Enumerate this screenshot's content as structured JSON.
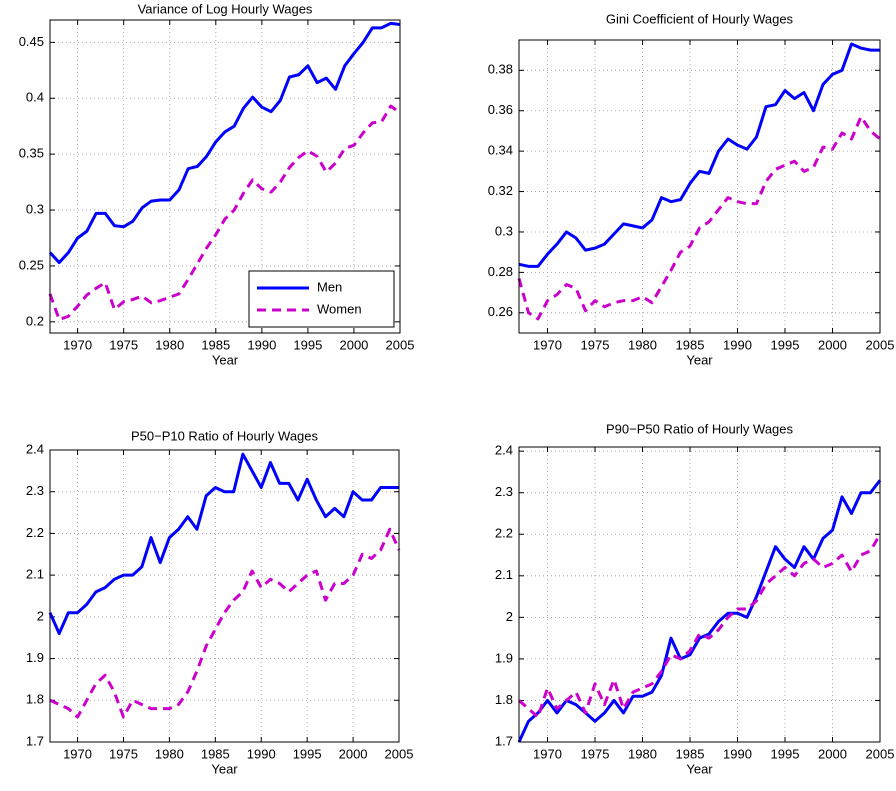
{
  "chart_data": [
    {
      "type": "line",
      "title": "Variance of Log Hourly Wages",
      "xlabel": "Year",
      "x": [
        1967,
        1968,
        1969,
        1970,
        1971,
        1972,
        1973,
        1974,
        1975,
        1976,
        1977,
        1978,
        1979,
        1980,
        1981,
        1982,
        1983,
        1984,
        1985,
        1986,
        1987,
        1988,
        1989,
        1990,
        1991,
        1992,
        1993,
        1994,
        1995,
        1996,
        1997,
        1998,
        1999,
        2000,
        2001,
        2002,
        2003,
        2004,
        2005
      ],
      "xlim": [
        1967,
        2005
      ],
      "xticks": [
        1970,
        1975,
        1980,
        1985,
        1990,
        1995,
        2000,
        2005
      ],
      "ylim": [
        0.19,
        0.47
      ],
      "yticks": [
        0.2,
        0.25,
        0.3,
        0.35,
        0.4,
        0.45
      ],
      "grid": true,
      "legend": "lower right",
      "series": [
        {
          "name": "Men",
          "color": "#0000ff",
          "dashed": false,
          "values": [
            0.262,
            0.253,
            0.262,
            0.275,
            0.281,
            0.297,
            0.297,
            0.286,
            0.285,
            0.29,
            0.302,
            0.308,
            0.309,
            0.309,
            0.318,
            0.337,
            0.339,
            0.348,
            0.361,
            0.37,
            0.375,
            0.391,
            0.401,
            0.392,
            0.388,
            0.398,
            0.419,
            0.421,
            0.429,
            0.414,
            0.418,
            0.408,
            0.429,
            0.44,
            0.45,
            0.463,
            0.463,
            0.467,
            0.466
          ]
        },
        {
          "name": "Women",
          "color": "#cc00cc",
          "dashed": true,
          "values": [
            0.225,
            0.202,
            0.205,
            0.214,
            0.224,
            0.23,
            0.235,
            0.211,
            0.218,
            0.22,
            0.223,
            0.217,
            0.219,
            0.222,
            0.225,
            0.238,
            0.252,
            0.266,
            0.278,
            0.292,
            0.3,
            0.315,
            0.327,
            0.319,
            0.316,
            0.325,
            0.338,
            0.347,
            0.353,
            0.348,
            0.334,
            0.342,
            0.355,
            0.358,
            0.369,
            0.378,
            0.379,
            0.393,
            0.387
          ]
        }
      ]
    },
    {
      "type": "line",
      "title": "Gini Coefficient of Hourly Wages",
      "xlabel": "Year",
      "x": [
        1967,
        1968,
        1969,
        1970,
        1971,
        1972,
        1973,
        1974,
        1975,
        1976,
        1977,
        1978,
        1979,
        1980,
        1981,
        1982,
        1983,
        1984,
        1985,
        1986,
        1987,
        1988,
        1989,
        1990,
        1991,
        1992,
        1993,
        1994,
        1995,
        1996,
        1997,
        1998,
        1999,
        2000,
        2001,
        2002,
        2003,
        2004,
        2005
      ],
      "xlim": [
        1967,
        2005
      ],
      "xticks": [
        1970,
        1975,
        1980,
        1985,
        1990,
        1995,
        2000,
        2005
      ],
      "ylim": [
        0.25,
        0.395
      ],
      "yticks": [
        0.26,
        0.28,
        0.3,
        0.32,
        0.34,
        0.36,
        0.38
      ],
      "grid": true,
      "series": [
        {
          "color": "#0000ff",
          "dashed": false,
          "values": [
            0.284,
            0.283,
            0.283,
            0.289,
            0.294,
            0.3,
            0.297,
            0.291,
            0.292,
            0.294,
            0.299,
            0.304,
            0.303,
            0.302,
            0.306,
            0.317,
            0.315,
            0.316,
            0.324,
            0.33,
            0.329,
            0.34,
            0.346,
            0.343,
            0.341,
            0.347,
            0.362,
            0.363,
            0.37,
            0.366,
            0.369,
            0.36,
            0.373,
            0.378,
            0.38,
            0.393,
            0.391,
            0.39,
            0.39
          ]
        },
        {
          "color": "#cc00cc",
          "dashed": true,
          "values": [
            0.277,
            0.26,
            0.257,
            0.266,
            0.269,
            0.274,
            0.272,
            0.261,
            0.266,
            0.263,
            0.265,
            0.266,
            0.266,
            0.268,
            0.265,
            0.273,
            0.281,
            0.29,
            0.293,
            0.302,
            0.305,
            0.311,
            0.317,
            0.315,
            0.314,
            0.314,
            0.325,
            0.331,
            0.333,
            0.335,
            0.33,
            0.332,
            0.342,
            0.341,
            0.349,
            0.346,
            0.357,
            0.35,
            0.346
          ]
        }
      ]
    },
    {
      "type": "line",
      "title": "P50−P10 Ratio of Hourly Wages",
      "xlabel": "Year",
      "x": [
        1967,
        1968,
        1969,
        1970,
        1971,
        1972,
        1973,
        1974,
        1975,
        1976,
        1977,
        1978,
        1979,
        1980,
        1981,
        1982,
        1983,
        1984,
        1985,
        1986,
        1987,
        1988,
        1989,
        1990,
        1991,
        1992,
        1993,
        1994,
        1995,
        1996,
        1997,
        1998,
        1999,
        2000,
        2001,
        2002,
        2003,
        2004,
        2005
      ],
      "xlim": [
        1967,
        2005
      ],
      "xticks": [
        1970,
        1975,
        1980,
        1985,
        1990,
        1995,
        2000,
        2005
      ],
      "ylim": [
        1.7,
        2.4
      ],
      "yticks": [
        1.7,
        1.8,
        1.9,
        2,
        2.1,
        2.2,
        2.3,
        2.4
      ],
      "grid": true,
      "series": [
        {
          "color": "#0000ff",
          "dashed": false,
          "values": [
            2.01,
            1.96,
            2.01,
            2.01,
            2.03,
            2.06,
            2.07,
            2.09,
            2.1,
            2.1,
            2.12,
            2.19,
            2.13,
            2.19,
            2.21,
            2.24,
            2.21,
            2.29,
            2.31,
            2.3,
            2.3,
            2.39,
            2.35,
            2.31,
            2.37,
            2.32,
            2.32,
            2.28,
            2.33,
            2.28,
            2.24,
            2.26,
            2.24,
            2.3,
            2.28,
            2.28,
            2.31,
            2.31,
            2.31
          ]
        },
        {
          "color": "#cc00cc",
          "dashed": true,
          "values": [
            1.8,
            1.79,
            1.78,
            1.76,
            1.8,
            1.84,
            1.86,
            1.82,
            1.76,
            1.8,
            1.79,
            1.78,
            1.78,
            1.78,
            1.79,
            1.82,
            1.87,
            1.93,
            1.97,
            2.01,
            2.04,
            2.06,
            2.11,
            2.07,
            2.09,
            2.08,
            2.06,
            2.08,
            2.1,
            2.11,
            2.04,
            2.08,
            2.08,
            2.1,
            2.15,
            2.14,
            2.16,
            2.21,
            2.16
          ]
        }
      ]
    },
    {
      "type": "line",
      "title": "P90−P50 Ratio of Hourly Wages",
      "xlabel": "Year",
      "x": [
        1967,
        1968,
        1969,
        1970,
        1971,
        1972,
        1973,
        1974,
        1975,
        1976,
        1977,
        1978,
        1979,
        1980,
        1981,
        1982,
        1983,
        1984,
        1985,
        1986,
        1987,
        1988,
        1989,
        1990,
        1991,
        1992,
        1993,
        1994,
        1995,
        1996,
        1997,
        1998,
        1999,
        2000,
        2001,
        2002,
        2003,
        2004,
        2005
      ],
      "xlim": [
        1967,
        2005
      ],
      "xticks": [
        1970,
        1975,
        1980,
        1985,
        1990,
        1995,
        2000,
        2005
      ],
      "ylim": [
        1.7,
        2.41
      ],
      "yticks": [
        1.7,
        1.8,
        1.9,
        2,
        2.1,
        2.2,
        2.3,
        2.4
      ],
      "grid": true,
      "series": [
        {
          "color": "#0000ff",
          "dashed": false,
          "values": [
            1.7,
            1.75,
            1.77,
            1.8,
            1.77,
            1.8,
            1.79,
            1.77,
            1.75,
            1.77,
            1.8,
            1.77,
            1.81,
            1.81,
            1.82,
            1.86,
            1.95,
            1.9,
            1.91,
            1.95,
            1.96,
            1.99,
            2.01,
            2.01,
            2,
            2.05,
            2.11,
            2.17,
            2.14,
            2.12,
            2.17,
            2.14,
            2.19,
            2.21,
            2.29,
            2.25,
            2.3,
            2.3,
            2.33
          ]
        },
        {
          "color": "#cc00cc",
          "dashed": true,
          "values": [
            1.8,
            1.78,
            1.76,
            1.83,
            1.78,
            1.8,
            1.82,
            1.77,
            1.84,
            1.79,
            1.85,
            1.78,
            1.82,
            1.83,
            1.84,
            1.87,
            1.91,
            1.9,
            1.92,
            1.96,
            1.95,
            1.97,
            2,
            2.02,
            2.02,
            2.04,
            2.08,
            2.1,
            2.12,
            2.1,
            2.13,
            2.14,
            2.12,
            2.13,
            2.15,
            2.11,
            2.15,
            2.16,
            2.2
          ]
        }
      ]
    }
  ]
}
